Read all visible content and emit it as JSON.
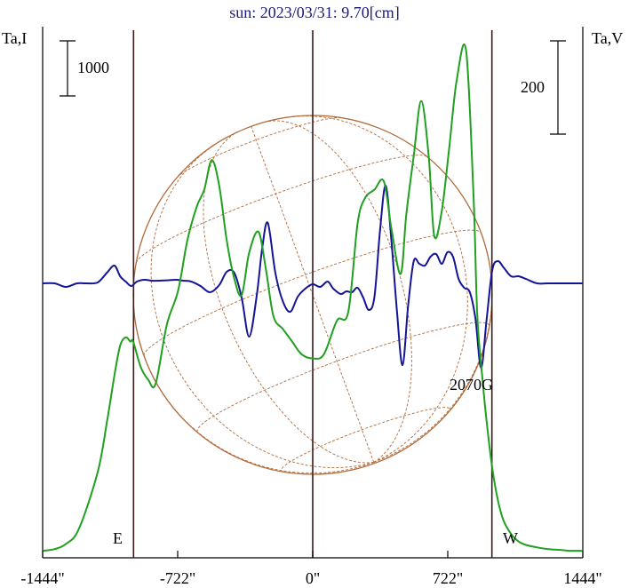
{
  "chart_data": {
    "type": "line",
    "title": "sun: 2023/03/31: 9.70[cm]",
    "left_axis_label": "Ta,I",
    "right_axis_label": "Ta,V",
    "x_ticks": [
      "-1444\"",
      "-722\"",
      "0\"",
      "722\"",
      "1444\""
    ],
    "x_tick_values": [
      -1444,
      -722,
      0,
      722,
      1444
    ],
    "xlim": [
      -1444,
      1444
    ],
    "left_scale_bar_label": "1000",
    "right_scale_bar_label": "200",
    "limb_labels": {
      "east": "E",
      "west": "W"
    },
    "annotation": "2070G",
    "colors": {
      "intensity": "#1fa01f",
      "polarization": "#141496",
      "disk": "#b06a3a",
      "vertical_lines": "#3a1a1a",
      "title": "#1a1a80"
    },
    "series": [
      {
        "role": "Ta,I",
        "color": "#1fa01f",
        "x": [
          -1444,
          -1380,
          -1320,
          -1250,
          -1150,
          -1100,
          -1060,
          -1030,
          -1000,
          -975,
          -960,
          -920,
          -880,
          -840,
          -780,
          -720,
          -670,
          -620,
          -580,
          -540,
          -500,
          -460,
          -420,
          -380,
          -340,
          -290,
          -250,
          -210,
          -160,
          -110,
          -60,
          0,
          60,
          130,
          190,
          240,
          280,
          330,
          380,
          420,
          470,
          500,
          540,
          580,
          620,
          650,
          690,
          730,
          770,
          820,
          860,
          880,
          910,
          930,
          960,
          990,
          1020,
          1060,
          1100,
          1140,
          1200,
          1260,
          1320,
          1380,
          1444
        ],
        "values": [
          0.02,
          0.04,
          0.1,
          0.28,
          0.95,
          1.55,
          2.1,
          2.45,
          2.55,
          2.5,
          2.5,
          2.2,
          2.05,
          2.0,
          2.7,
          3.1,
          3.7,
          4.1,
          4.3,
          4.65,
          4.35,
          3.7,
          3.25,
          3.05,
          3.55,
          3.8,
          3.35,
          2.8,
          2.65,
          2.5,
          2.35,
          2.3,
          2.35,
          2.75,
          2.85,
          3.9,
          4.2,
          4.3,
          4.4,
          3.85,
          3.3,
          4.0,
          4.7,
          5.35,
          4.7,
          3.75,
          4.05,
          4.8,
          5.6,
          5.95,
          4.2,
          2.8,
          2.0,
          1.55,
          1.0,
          0.62,
          0.38,
          0.22,
          0.13,
          0.09,
          0.06,
          0.04,
          0.03,
          0.02,
          0.02
        ]
      },
      {
        "role": "Ta,V",
        "color": "#141496",
        "x": [
          -1444,
          -1380,
          -1320,
          -1260,
          -1210,
          -1150,
          -1100,
          -1060,
          -1030,
          -1000,
          -970,
          -940,
          -900,
          -860,
          -820,
          -770,
          -730,
          -690,
          -650,
          -600,
          -550,
          -500,
          -460,
          -420,
          -380,
          -340,
          -300,
          -270,
          -240,
          -200,
          -160,
          -120,
          -80,
          -40,
          0,
          40,
          80,
          110,
          150,
          180,
          210,
          240,
          270,
          300,
          330,
          360,
          390,
          420,
          450,
          480,
          510,
          540,
          570,
          600,
          630,
          660,
          690,
          720,
          750,
          780,
          810,
          840,
          870,
          900,
          930,
          960,
          990,
          1020,
          1060,
          1100,
          1140,
          1200,
          1260,
          1320,
          1380,
          1444
        ],
        "values": [
          0.0,
          0.0,
          -0.4,
          0.0,
          0.0,
          0.1,
          1.2,
          2.0,
          0.8,
          0.2,
          -0.3,
          0.2,
          0.4,
          0.3,
          0.3,
          0.35,
          0.4,
          0.3,
          0.2,
          -0.3,
          -1.0,
          -0.2,
          1.3,
          1.2,
          -1.6,
          -6.0,
          -1.5,
          4.0,
          6.8,
          1.2,
          -2.0,
          -3.2,
          -1.5,
          -0.6,
          -0.1,
          -0.4,
          0.2,
          -0.6,
          -1.2,
          -0.9,
          -1.0,
          -0.5,
          -1.6,
          -3.0,
          -1.5,
          6.0,
          11.0,
          5.0,
          -3.0,
          -9.2,
          -2.5,
          2.5,
          2.2,
          2.0,
          3.0,
          3.3,
          2.2,
          3.5,
          3.0,
          0.5,
          -0.5,
          -1.0,
          -4.0,
          -9.5,
          -4.0,
          1.5,
          2.5,
          1.8,
          0.8,
          0.8,
          0.5,
          0.0,
          0.0,
          0.0,
          0.0,
          0.0
        ]
      }
    ]
  }
}
